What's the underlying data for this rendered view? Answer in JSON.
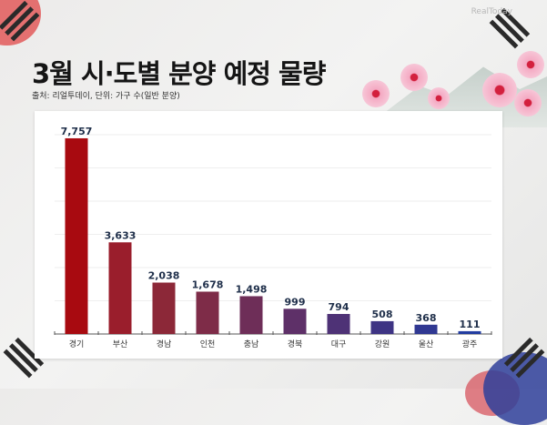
{
  "header": {
    "title": "3월 시·도별 분양 예정 물량",
    "subtitle": "출처: 리얼투데이, 단위: 가구 수(일반 분양)",
    "logo_text": "RealToday"
  },
  "chart_data": {
    "type": "bar",
    "title": "3월 시·도별 분양 예정 물량",
    "categories": [
      "경기",
      "부산",
      "경남",
      "인천",
      "충남",
      "경북",
      "대구",
      "강원",
      "울산",
      "광주"
    ],
    "values": [
      7757,
      3633,
      2038,
      1678,
      1498,
      999,
      794,
      508,
      368,
      111
    ],
    "value_labels": [
      "7,757",
      "3,633",
      "2,038",
      "1,678",
      "1,498",
      "999",
      "794",
      "508",
      "368",
      "111"
    ],
    "ylim": [
      0,
      7900
    ],
    "grid": true,
    "colors": [
      "#a80a10",
      "#9a1e2c",
      "#8c2838",
      "#7e2c48",
      "#6e2e58",
      "#5e3068",
      "#4e3276",
      "#3e3484",
      "#303892",
      "#223ca0"
    ]
  }
}
